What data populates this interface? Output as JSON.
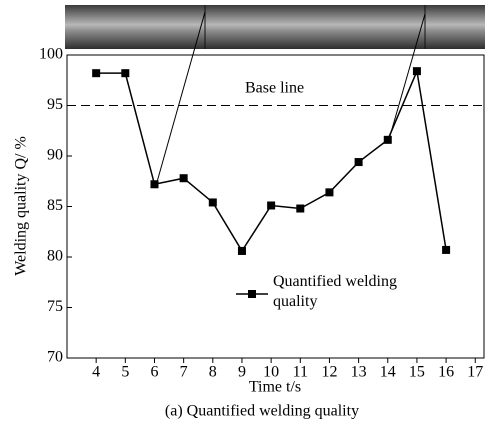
{
  "chart_data": {
    "type": "line",
    "caption": "(a) Quantified welding quality",
    "x_label": "Time t/s",
    "y_label": "Welding quality Q/ %",
    "x": [
      4,
      5,
      6,
      7,
      8,
      9,
      10,
      11,
      12,
      13,
      14,
      15,
      16
    ],
    "series": [
      {
        "name": "Quantified welding quality",
        "color": "#000000",
        "values": [
          98.2,
          98.2,
          87.2,
          87.8,
          85.4,
          80.6,
          85.1,
          84.8,
          86.4,
          89.4,
          91.6,
          98.4,
          80.7
        ]
      }
    ],
    "baseline": {
      "value": 95,
      "label": "Base line"
    },
    "xlim": [
      3,
      17.3
    ],
    "xticks": [
      4,
      5,
      6,
      7,
      8,
      9,
      10,
      11,
      12,
      13,
      14,
      15,
      16,
      17
    ],
    "ylim": [
      70,
      100
    ],
    "yticks": [
      70,
      75,
      80,
      85,
      90,
      95,
      100
    ]
  }
}
